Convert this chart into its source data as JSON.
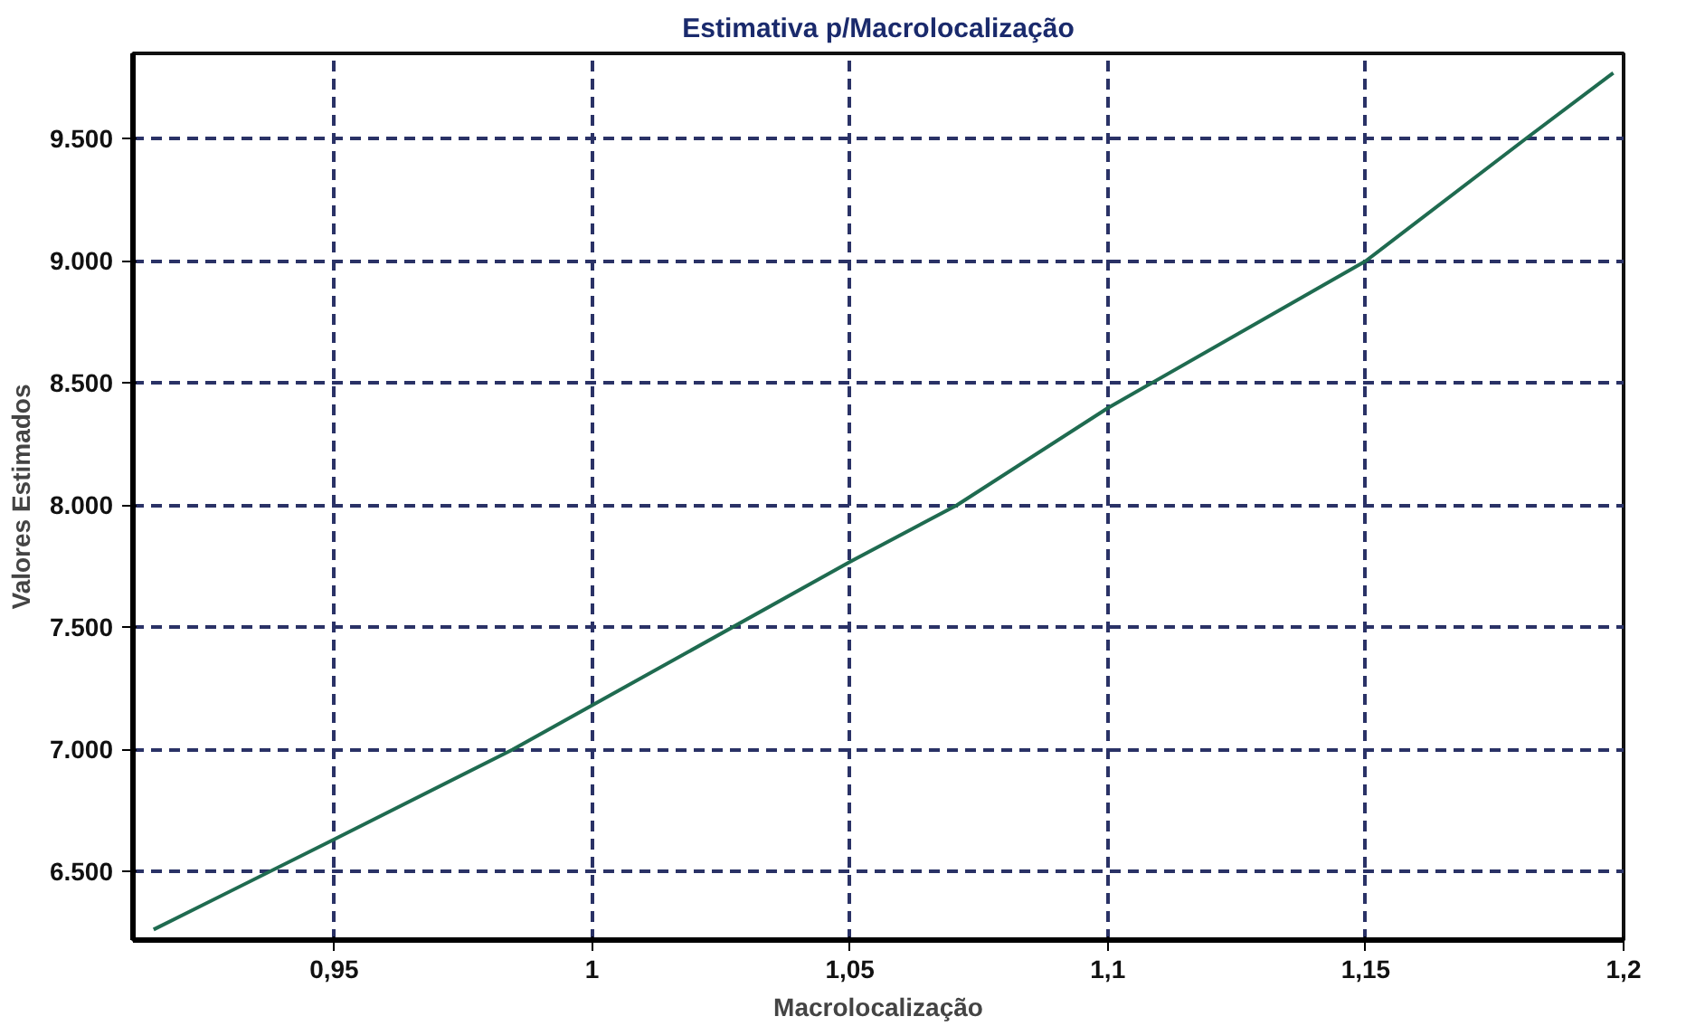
{
  "chart_data": {
    "type": "line",
    "title": "Estimativa p/Macrolocalização",
    "xlabel": "Macrolocalização",
    "ylabel": "Valores Estimados",
    "x": [
      0.915,
      0.95,
      0.9846,
      1.05,
      1.0707,
      1.1,
      1.15,
      1.181,
      1.198
    ],
    "series": [
      {
        "color": "#1f6b50",
        "values": [
          6263,
          6632,
          7000,
          7768,
          8000,
          8398,
          9000,
          9500,
          9770
        ]
      }
    ],
    "xlim": [
      0.911,
      1.2
    ],
    "ylim": [
      6220,
      9850
    ],
    "xticks": [
      {
        "value": 0.95,
        "label": "0,95"
      },
      1,
      {
        "value": 1.05,
        "label": "1,05"
      },
      {
        "value": 1.1,
        "label": "1,1"
      },
      {
        "value": 1.15,
        "label": "1,15"
      },
      {
        "value": 1.2,
        "label": "1,2"
      }
    ],
    "yticks": [
      {
        "value": 6500,
        "label": "6.500"
      },
      {
        "value": 7000,
        "label": "7.000"
      },
      {
        "value": 7500,
        "label": "7.500"
      },
      {
        "value": 8000,
        "label": "8.000"
      },
      {
        "value": 8500,
        "label": "8.500"
      },
      {
        "value": 9000,
        "label": "9.000"
      },
      {
        "value": 9500,
        "label": "9.500"
      }
    ],
    "grid": true,
    "marker": "none",
    "line_style": "solid"
  }
}
